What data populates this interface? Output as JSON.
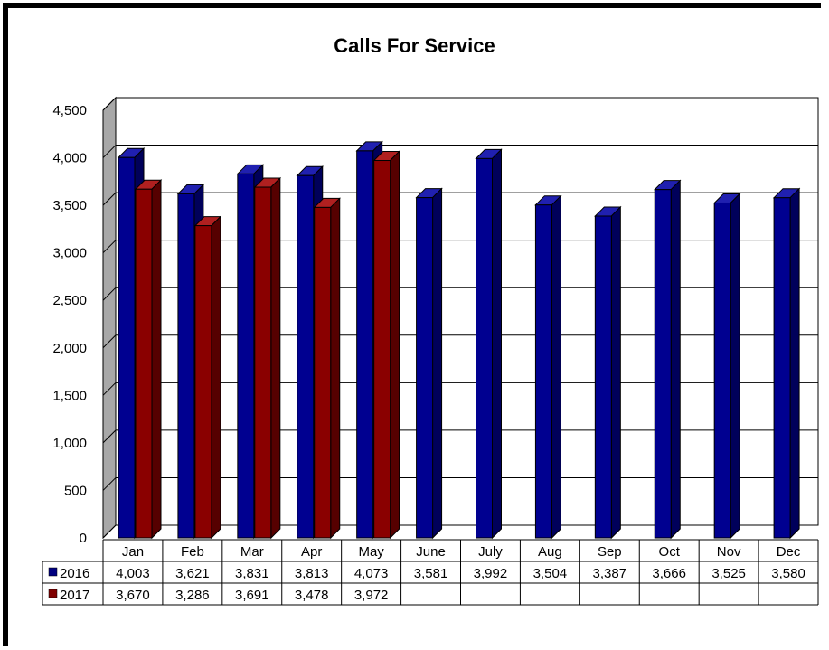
{
  "chart_data": {
    "type": "bar",
    "title": "Calls For Service",
    "categories": [
      "Jan",
      "Feb",
      "Mar",
      "Apr",
      "May",
      "June",
      "July",
      "Aug",
      "Sep",
      "Oct",
      "Nov",
      "Dec"
    ],
    "series": [
      {
        "name": "2016",
        "color": "#000080",
        "values": [
          4003,
          3621,
          3831,
          3813,
          4073,
          3581,
          3992,
          3504,
          3387,
          3666,
          3525,
          3580
        ],
        "labels": [
          "4,003",
          "3,621",
          "3,831",
          "3,813",
          "4,073",
          "3,581",
          "3,992",
          "3,504",
          "3,387",
          "3,666",
          "3,525",
          "3,580"
        ]
      },
      {
        "name": "2017",
        "color": "#800000",
        "values": [
          3670,
          3286,
          3691,
          3478,
          3972,
          null,
          null,
          null,
          null,
          null,
          null,
          null
        ],
        "labels": [
          "3,670",
          "3,286",
          "3,691",
          "3,478",
          "3,972",
          "",
          "",
          "",
          "",
          "",
          "",
          ""
        ]
      }
    ],
    "ylim": [
      0,
      4500
    ],
    "yticks": [
      0,
      500,
      1000,
      1500,
      2000,
      2500,
      3000,
      3500,
      4000,
      4500
    ],
    "ytick_labels": [
      "0",
      "500",
      "1,000",
      "1,500",
      "2,000",
      "2,500",
      "3,000",
      "3,500",
      "4,000",
      "4,500"
    ],
    "grid": true,
    "legend": "data table below plot"
  }
}
